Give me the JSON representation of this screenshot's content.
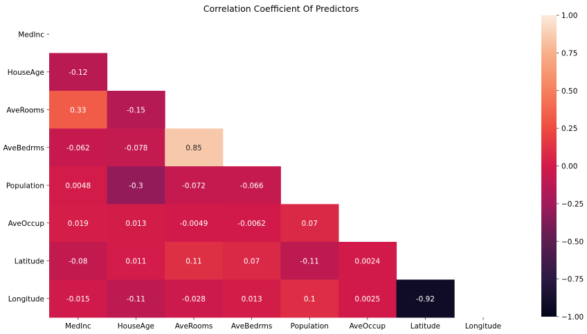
{
  "chart_data": {
    "type": "heatmap",
    "title": "Correlation Coefficient Of Predictors",
    "xlabel": "",
    "ylabel": "",
    "labels": [
      "MedInc",
      "HouseAge",
      "AveRooms",
      "AveBedrms",
      "Population",
      "AveOccup",
      "Latitude",
      "Longitude"
    ],
    "mask": "upper-triangle-including-diagonal",
    "cells": [
      {
        "row": 1,
        "col": 0,
        "value": -0.12,
        "label": "-0.12"
      },
      {
        "row": 2,
        "col": 0,
        "value": 0.33,
        "label": "0.33"
      },
      {
        "row": 2,
        "col": 1,
        "value": -0.15,
        "label": "-0.15"
      },
      {
        "row": 3,
        "col": 0,
        "value": -0.062,
        "label": "-0.062"
      },
      {
        "row": 3,
        "col": 1,
        "value": -0.078,
        "label": "-0.078"
      },
      {
        "row": 3,
        "col": 2,
        "value": 0.85,
        "label": "0.85"
      },
      {
        "row": 4,
        "col": 0,
        "value": 0.0048,
        "label": "0.0048"
      },
      {
        "row": 4,
        "col": 1,
        "value": -0.3,
        "label": "-0.3"
      },
      {
        "row": 4,
        "col": 2,
        "value": -0.072,
        "label": "-0.072"
      },
      {
        "row": 4,
        "col": 3,
        "value": -0.066,
        "label": "-0.066"
      },
      {
        "row": 5,
        "col": 0,
        "value": 0.019,
        "label": "0.019"
      },
      {
        "row": 5,
        "col": 1,
        "value": 0.013,
        "label": "0.013"
      },
      {
        "row": 5,
        "col": 2,
        "value": -0.0049,
        "label": "-0.0049"
      },
      {
        "row": 5,
        "col": 3,
        "value": -0.0062,
        "label": "-0.0062"
      },
      {
        "row": 5,
        "col": 4,
        "value": 0.07,
        "label": "0.07"
      },
      {
        "row": 6,
        "col": 0,
        "value": -0.08,
        "label": "-0.08"
      },
      {
        "row": 6,
        "col": 1,
        "value": 0.011,
        "label": "0.011"
      },
      {
        "row": 6,
        "col": 2,
        "value": 0.11,
        "label": "0.11"
      },
      {
        "row": 6,
        "col": 3,
        "value": 0.07,
        "label": "0.07"
      },
      {
        "row": 6,
        "col": 4,
        "value": -0.11,
        "label": "-0.11"
      },
      {
        "row": 6,
        "col": 5,
        "value": 0.0024,
        "label": "0.0024"
      },
      {
        "row": 7,
        "col": 0,
        "value": -0.015,
        "label": "-0.015"
      },
      {
        "row": 7,
        "col": 1,
        "value": -0.11,
        "label": "-0.11"
      },
      {
        "row": 7,
        "col": 2,
        "value": -0.028,
        "label": "-0.028"
      },
      {
        "row": 7,
        "col": 3,
        "value": 0.013,
        "label": "0.013"
      },
      {
        "row": 7,
        "col": 4,
        "value": 0.1,
        "label": "0.1"
      },
      {
        "row": 7,
        "col": 5,
        "value": 0.0025,
        "label": "0.0025"
      },
      {
        "row": 7,
        "col": 6,
        "value": -0.92,
        "label": "-0.92"
      }
    ],
    "colorbar": {
      "range": [
        -1.0,
        1.0
      ],
      "ticks": [
        {
          "value": 1.0,
          "label": "1.00"
        },
        {
          "value": 0.75,
          "label": "0.75"
        },
        {
          "value": 0.5,
          "label": "0.50"
        },
        {
          "value": 0.25,
          "label": "0.25"
        },
        {
          "value": 0.0,
          "label": "0.00"
        },
        {
          "value": -0.25,
          "label": "−0.25"
        },
        {
          "value": -0.5,
          "label": "−0.50"
        },
        {
          "value": -0.75,
          "label": "−0.75"
        },
        {
          "value": -1.0,
          "label": "−1.00"
        }
      ],
      "colormap": "rocket",
      "stops": [
        {
          "value": -1.0,
          "color": "#03051a"
        },
        {
          "value": -0.75,
          "color": "#2b1a42"
        },
        {
          "value": -0.5,
          "color": "#5b1e51"
        },
        {
          "value": -0.25,
          "color": "#a11a5b"
        },
        {
          "value": 0.0,
          "color": "#d21a4a"
        },
        {
          "value": 0.25,
          "color": "#ee4b3f"
        },
        {
          "value": 0.5,
          "color": "#f6805e"
        },
        {
          "value": 0.75,
          "color": "#f7b089"
        },
        {
          "value": 1.0,
          "color": "#faebdd"
        }
      ]
    },
    "grid": false,
    "legend": "right"
  }
}
